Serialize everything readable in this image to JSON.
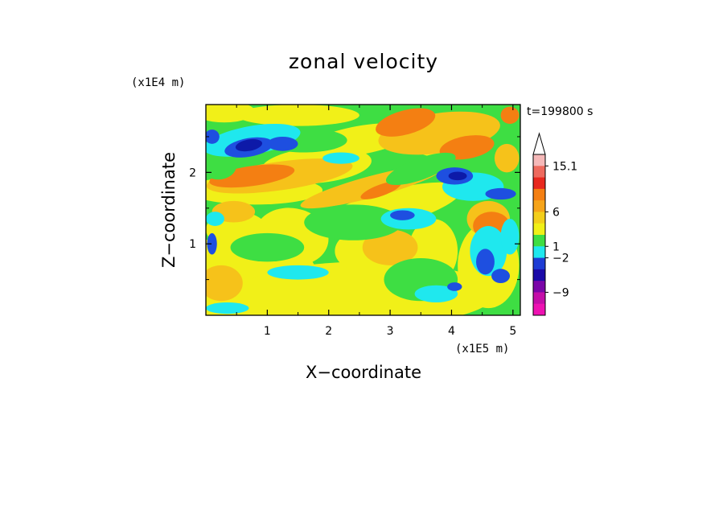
{
  "chart_data": {
    "type": "heatmap",
    "title": "zonal velocity",
    "xlabel": "X−coordinate",
    "ylabel": "Z−coordinate",
    "x_unit": "(x1E5 m)",
    "y_unit": "(x1E4 m)",
    "time_label": "t=199800 s",
    "xlim": [
      0,
      5.12
    ],
    "ylim": [
      0,
      2.95
    ],
    "x_ticks": [
      {
        "value": 1,
        "label": "1"
      },
      {
        "value": 2,
        "label": "2"
      },
      {
        "value": 3,
        "label": "3"
      },
      {
        "value": 4,
        "label": "4"
      },
      {
        "value": 5,
        "label": "5"
      }
    ],
    "y_ticks": [
      {
        "value": 1,
        "label": "1"
      },
      {
        "value": 2,
        "label": "2"
      }
    ],
    "colorbar": {
      "levels": [
        "15.1",
        "6",
        "1",
        "−2",
        "−9"
      ],
      "colors": [
        "#f5b8b8",
        "#ee6a5e",
        "#e8281e",
        "#f47f12",
        "#f6a41a",
        "#f3ce1b",
        "#f1f018",
        "#3ede43",
        "#1fe8ee",
        "#1e3cd4",
        "#1a0aa8",
        "#7a06a8",
        "#c40ea8",
        "#ee12b2"
      ],
      "extend_max": true
    },
    "field_colors": {
      "strong_neg": "#0d1aa8",
      "neg": "#1e4fe0",
      "weak_neg": "#1fe8ee",
      "near_zero": "#3ede43",
      "weak_pos": "#f1f018",
      "pos": "#f6c21a",
      "strong_pos": "#f47f12"
    }
  }
}
